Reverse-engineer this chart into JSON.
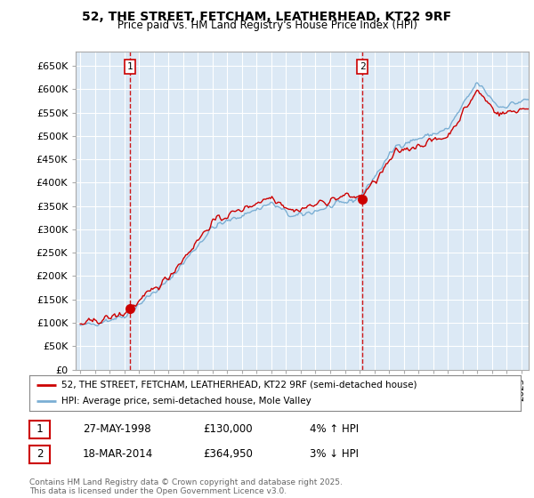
{
  "title": "52, THE STREET, FETCHAM, LEATHERHEAD, KT22 9RF",
  "subtitle": "Price paid vs. HM Land Registry's House Price Index (HPI)",
  "ylim": [
    0,
    680000
  ],
  "yticks": [
    0,
    50000,
    100000,
    150000,
    200000,
    250000,
    300000,
    350000,
    400000,
    450000,
    500000,
    550000,
    600000,
    650000
  ],
  "ytick_labels": [
    "£0",
    "£50K",
    "£100K",
    "£150K",
    "£200K",
    "£250K",
    "£300K",
    "£350K",
    "£400K",
    "£450K",
    "£500K",
    "£550K",
    "£600K",
    "£650K"
  ],
  "xlim_start": 1994.7,
  "xlim_end": 2025.5,
  "vline1_x": 1998.4,
  "vline2_x": 2014.2,
  "marker1_x": 1998.4,
  "marker1_y": 130000,
  "marker2_x": 2014.2,
  "marker2_y": 364950,
  "legend_line1": "52, THE STREET, FETCHAM, LEATHERHEAD, KT22 9RF (semi-detached house)",
  "legend_line2": "HPI: Average price, semi-detached house, Mole Valley",
  "info1_num": "1",
  "info1_date": "27-MAY-1998",
  "info1_price": "£130,000",
  "info1_hpi": "4% ↑ HPI",
  "info2_num": "2",
  "info2_date": "18-MAR-2014",
  "info2_price": "£364,950",
  "info2_hpi": "3% ↓ HPI",
  "copyright_text": "Contains HM Land Registry data © Crown copyright and database right 2025.\nThis data is licensed under the Open Government Licence v3.0.",
  "line_color_price": "#cc0000",
  "line_color_hpi": "#7bafd4",
  "vline_color": "#cc0000",
  "chart_bg": "#dce9f5",
  "grid_color": "#ffffff",
  "fig_bg": "#ffffff"
}
